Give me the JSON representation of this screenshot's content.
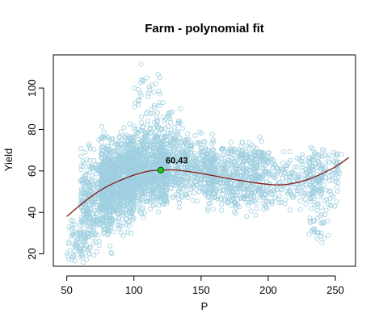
{
  "chart_data": {
    "type": "scatter",
    "title": "Farm - polynomial fit",
    "xlabel": "P",
    "ylabel": "Yield",
    "xlim": [
      40,
      265
    ],
    "ylim": [
      14,
      116
    ],
    "x_ticks": [
      50,
      100,
      150,
      200,
      250
    ],
    "y_ticks": [
      20,
      40,
      60,
      80,
      100
    ],
    "grid": false,
    "colors": {
      "points": "#9fcfe0",
      "fit_line": "#8b1a1a",
      "highlight_fill": "#22cc22",
      "highlight_stroke": "#006400"
    },
    "point_clusters": [
      {
        "x_range": [
          50,
          65
        ],
        "y_center": 25,
        "y_spread": 8,
        "count": 60
      },
      {
        "x_range": [
          60,
          85
        ],
        "y_center": 45,
        "y_spread": 16,
        "count": 420
      },
      {
        "x_range": [
          75,
          100
        ],
        "y_center": 55,
        "y_spread": 14,
        "count": 800
      },
      {
        "x_range": [
          95,
          125
        ],
        "y_center": 60,
        "y_spread": 12,
        "count": 800
      },
      {
        "x_range": [
          105,
          135
        ],
        "y_center": 78,
        "y_spread": 10,
        "count": 120
      },
      {
        "x_range": [
          100,
          120
        ],
        "y_center": 98,
        "y_spread": 8,
        "count": 30
      },
      {
        "x_range": [
          120,
          160
        ],
        "y_center": 62,
        "y_spread": 10,
        "count": 500
      },
      {
        "x_range": [
          155,
          200
        ],
        "y_center": 55,
        "y_spread": 10,
        "count": 420
      },
      {
        "x_range": [
          165,
          200
        ],
        "y_center": 66,
        "y_spread": 6,
        "count": 120
      },
      {
        "x_range": [
          200,
          240
        ],
        "y_center": 56,
        "y_spread": 9,
        "count": 200
      },
      {
        "x_range": [
          230,
          255
        ],
        "y_center": 58,
        "y_spread": 10,
        "count": 120
      },
      {
        "x_range": [
          230,
          245
        ],
        "y_center": 32,
        "y_spread": 6,
        "count": 30
      }
    ],
    "fit_curve": {
      "x": [
        50,
        60,
        70,
        80,
        90,
        100,
        110,
        120,
        130,
        140,
        150,
        160,
        170,
        180,
        190,
        200,
        210,
        220,
        230,
        240,
        250,
        260
      ],
      "y": [
        38,
        43.5,
        48.5,
        52.5,
        55.5,
        58,
        59.8,
        60.4,
        60.5,
        59.8,
        58.8,
        57.6,
        56.4,
        55.3,
        54.3,
        53.5,
        53.3,
        54.2,
        56,
        58.7,
        62,
        66.5
      ]
    },
    "highlight": {
      "x": 120,
      "y": 60.43,
      "label": "60.43"
    }
  }
}
